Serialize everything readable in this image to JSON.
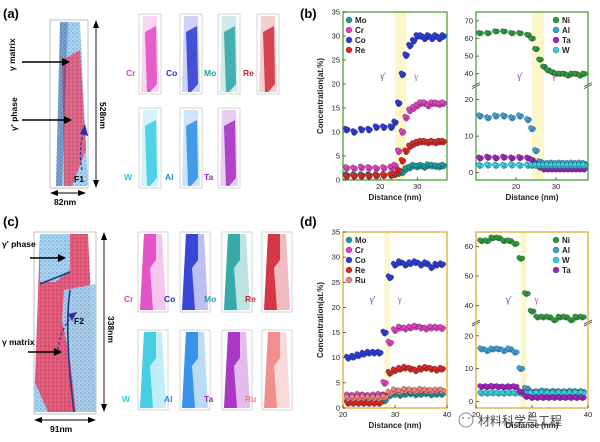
{
  "panels": {
    "a": {
      "label": "(a)",
      "annotations": {
        "gamma_matrix": "γ matrix",
        "gamma_prime_phase": "γ' phase",
        "height": "528nm",
        "width": "82nm",
        "feature": "F1"
      },
      "elements": [
        "Cr",
        "Co",
        "Mo",
        "Re",
        "W",
        "Al",
        "Ta"
      ],
      "element_colors": {
        "Cr": "#e040c0",
        "Co": "#2030d0",
        "Mo": "#20a0a0",
        "Re": "#d02030",
        "W": "#30c8e0",
        "Al": "#1e88e5",
        "Ta": "#a020c0"
      }
    },
    "c": {
      "label": "(c)",
      "annotations": {
        "gamma_matrix": "γ matrix",
        "gamma_prime_phase": "γ' phase",
        "height": "338nm",
        "width": "91nm",
        "feature": "F2"
      },
      "elements": [
        "Cr",
        "Co",
        "Mo",
        "Re",
        "W",
        "Al",
        "Ta",
        "Ru"
      ],
      "element_colors": {
        "Cr": "#e040c0",
        "Co": "#2030d0",
        "Mo": "#20a0a0",
        "Re": "#d02030",
        "W": "#30c8e0",
        "Al": "#1e88e5",
        "Ta": "#a020c0",
        "Ru": "#f08080"
      }
    },
    "b": {
      "label": "(b)"
    },
    "d": {
      "label": "(d)"
    }
  },
  "watermark": "材料科学与工程",
  "chart_data": [
    {
      "id": "b-left",
      "type": "scatter",
      "panel": "b",
      "xlabel": "Distance (nm)",
      "ylabel": "Concentration(at.%)",
      "xlim": [
        10,
        38
      ],
      "ylim": [
        0,
        35
      ],
      "xticks": [
        20,
        30
      ],
      "yticks": [
        0,
        5,
        10,
        15,
        20,
        25,
        30,
        35
      ],
      "phase_labels": [
        "γ'",
        "γ"
      ],
      "interface_x": [
        24,
        27
      ],
      "legend": [
        "Mo",
        "Cr",
        "Co",
        "Re"
      ],
      "series": [
        {
          "name": "Mo",
          "color": "#1a9a9a",
          "x": [
            11,
            13,
            15,
            17,
            19,
            21,
            23,
            24,
            25,
            26,
            27,
            28,
            29,
            30,
            31,
            32,
            33,
            34,
            35,
            36,
            37
          ],
          "y": [
            1.0,
            1.0,
            1.0,
            1.0,
            1.0,
            1.0,
            1.0,
            1.2,
            1.4,
            1.6,
            2.3,
            2.6,
            3.0,
            2.8,
            3.0,
            2.7,
            3.1,
            3.0,
            2.9,
            2.8,
            3.0
          ]
        },
        {
          "name": "Cr",
          "color": "#e040c0",
          "x": [
            11,
            13,
            15,
            17,
            19,
            21,
            23,
            24,
            25,
            26,
            27,
            28,
            29,
            30,
            31,
            32,
            33,
            34,
            35,
            36,
            37
          ],
          "y": [
            2.5,
            2.4,
            2.6,
            2.5,
            2.4,
            2.5,
            2.6,
            3.0,
            6.0,
            10,
            13,
            14.5,
            15,
            15.5,
            16,
            16,
            15.5,
            16,
            16,
            15.8,
            16
          ]
        },
        {
          "name": "Co",
          "color": "#2a3cd8",
          "x": [
            11,
            13,
            15,
            17,
            19,
            21,
            23,
            24,
            25,
            26,
            27,
            28,
            29,
            30,
            31,
            32,
            33,
            34,
            35,
            36,
            37
          ],
          "y": [
            10.5,
            10,
            10.5,
            10.5,
            11,
            11,
            11,
            12,
            16,
            22,
            26,
            28,
            29,
            30,
            30,
            29.5,
            30,
            29.5,
            30,
            29.5,
            30
          ]
        },
        {
          "name": "Re",
          "color": "#d82828",
          "x": [
            11,
            13,
            15,
            17,
            19,
            21,
            23,
            24,
            25,
            26,
            27,
            28,
            29,
            30,
            31,
            32,
            33,
            34,
            35,
            36,
            37
          ],
          "y": [
            0.8,
            0.8,
            0.8,
            0.8,
            0.9,
            1.0,
            1.0,
            1.2,
            2.0,
            4.0,
            6.0,
            7.0,
            7.5,
            7.8,
            8.0,
            8.0,
            7.8,
            8.0,
            7.8,
            8.0,
            8.0
          ]
        }
      ]
    },
    {
      "id": "b-right",
      "type": "scatter",
      "panel": "b",
      "xlabel": "Distance (nm)",
      "ylabel": "",
      "xlim": [
        10,
        38
      ],
      "yticks_top": [
        40,
        50,
        60,
        70
      ],
      "yticks_bottom": [
        0,
        10,
        20
      ],
      "xticks": [
        20,
        30
      ],
      "phase_labels": [
        "γ'",
        "γ"
      ],
      "interface_x": [
        24,
        27
      ],
      "legend": [
        "Ni",
        "Al",
        "Ta",
        "W"
      ],
      "series": [
        {
          "name": "Ni",
          "color": "#2a9a3a",
          "x": [
            11,
            13,
            15,
            17,
            19,
            21,
            23,
            24,
            25,
            26,
            27,
            28,
            29,
            30,
            31,
            32,
            33,
            34,
            35,
            36,
            37
          ],
          "y": [
            63,
            63,
            64,
            64,
            63,
            63,
            62,
            60,
            54,
            48,
            44,
            42,
            41,
            40,
            40,
            40,
            39,
            40,
            40,
            39,
            40
          ]
        },
        {
          "name": "Al",
          "color": "#3aa0d8",
          "x": [
            11,
            13,
            15,
            17,
            19,
            21,
            23,
            24,
            25,
            26,
            27,
            28,
            29,
            30,
            31,
            32,
            33,
            34,
            35,
            36,
            37
          ],
          "y": [
            15.5,
            15,
            15.5,
            15.5,
            15,
            15.5,
            14.5,
            12,
            6,
            3,
            2.5,
            2.5,
            2.6,
            2.5,
            2.6,
            2.5,
            2.5,
            2.6,
            2.5,
            2.6,
            2.5
          ]
        },
        {
          "name": "Ta",
          "color": "#a020c0",
          "x": [
            11,
            13,
            15,
            17,
            19,
            21,
            23,
            24,
            25,
            26,
            27,
            28,
            29,
            30,
            31,
            32,
            33,
            34,
            35,
            36,
            37
          ],
          "y": [
            4.0,
            4.2,
            4.0,
            4.2,
            4.0,
            4.1,
            4.0,
            3.5,
            2.5,
            1.5,
            1.0,
            1.0,
            1.0,
            1.0,
            1.0,
            1.0,
            1.0,
            1.0,
            1.0,
            1.0,
            1.0
          ]
        },
        {
          "name": "W",
          "color": "#30d0e0",
          "x": [
            11,
            13,
            15,
            17,
            19,
            21,
            23,
            24,
            25,
            26,
            27,
            28,
            29,
            30,
            31,
            32,
            33,
            34,
            35,
            36,
            37
          ],
          "y": [
            2.0,
            2.1,
            2.0,
            2.0,
            2.1,
            2.0,
            2.0,
            2.0,
            2.0,
            2.0,
            2.0,
            2.0,
            2.0,
            2.0,
            2.0,
            2.0,
            2.0,
            2.0,
            2.0,
            2.0,
            2.0
          ]
        }
      ]
    },
    {
      "id": "d-left",
      "type": "scatter",
      "panel": "d",
      "xlabel": "Distance (nm)",
      "ylabel": "Concentration(at.%)",
      "xlim": [
        20,
        40
      ],
      "ylim": [
        0,
        35
      ],
      "xticks": [
        20,
        30,
        40
      ],
      "yticks": [
        0,
        5,
        10,
        15,
        20,
        25,
        30,
        35
      ],
      "phase_labels": [
        "γ'",
        "γ"
      ],
      "interface_x": [
        28,
        29
      ],
      "legend": [
        "Mo",
        "Cr",
        "Co",
        "Re",
        "Ru"
      ],
      "series": [
        {
          "name": "Mo",
          "color": "#1a9a9a",
          "x": [
            21,
            22,
            23,
            24,
            25,
            26,
            27,
            28,
            29,
            30,
            31,
            32,
            33,
            34,
            35,
            36,
            37,
            38,
            39
          ],
          "y": [
            1.2,
            1.2,
            1.3,
            1.2,
            1.2,
            1.3,
            1.2,
            1.5,
            2.5,
            2.8,
            2.6,
            2.8,
            2.9,
            2.7,
            2.8,
            2.9,
            2.7,
            2.8,
            2.8
          ]
        },
        {
          "name": "Cr",
          "color": "#e040c0",
          "x": [
            21,
            22,
            23,
            24,
            25,
            26,
            27,
            28,
            29,
            30,
            31,
            32,
            33,
            34,
            35,
            36,
            37,
            38,
            39
          ],
          "y": [
            2.5,
            2.4,
            2.6,
            2.5,
            2.4,
            2.5,
            2.6,
            5.0,
            13,
            15.5,
            16,
            15.8,
            16,
            16.2,
            16,
            15.8,
            16,
            16,
            15.9
          ]
        },
        {
          "name": "Co",
          "color": "#2a3cd8",
          "x": [
            21,
            22,
            23,
            24,
            25,
            26,
            27,
            28,
            29,
            30,
            31,
            32,
            33,
            34,
            35,
            36,
            37,
            38,
            39
          ],
          "y": [
            10,
            10.2,
            10.5,
            10.8,
            11,
            11,
            11,
            15,
            26,
            28.5,
            29,
            28.5,
            28.8,
            29,
            28.5,
            28.8,
            28,
            28.5,
            28.6
          ]
        },
        {
          "name": "Re",
          "color": "#d82828",
          "x": [
            21,
            22,
            23,
            24,
            25,
            26,
            27,
            28,
            29,
            30,
            31,
            32,
            33,
            34,
            35,
            36,
            37,
            38,
            39
          ],
          "y": [
            1.0,
            1.0,
            1.0,
            1.0,
            1.0,
            1.0,
            1.0,
            2.5,
            7.0,
            7.5,
            7.8,
            8.0,
            7.8,
            7.5,
            7.8,
            8.0,
            7.8,
            7.6,
            7.8
          ]
        },
        {
          "name": "Ru",
          "color": "#f08080",
          "x": [
            21,
            22,
            23,
            24,
            25,
            26,
            27,
            28,
            29,
            30,
            31,
            32,
            33,
            34,
            35,
            36,
            37,
            38,
            39
          ],
          "y": [
            2.0,
            2.0,
            2.0,
            2.1,
            2.0,
            2.0,
            2.0,
            2.2,
            3.0,
            3.5,
            3.3,
            3.6,
            3.5,
            3.4,
            3.6,
            3.5,
            3.4,
            3.5,
            3.5
          ]
        }
      ]
    },
    {
      "id": "d-right",
      "type": "scatter",
      "panel": "d",
      "xlabel": "Distance (nm)",
      "ylabel": "",
      "xlim": [
        20,
        40
      ],
      "yticks_top": [
        40,
        50,
        60
      ],
      "yticks_bottom": [
        0,
        10,
        20
      ],
      "xticks": [
        20,
        30,
        40
      ],
      "phase_labels": [
        "γ'",
        "γ"
      ],
      "interface_x": [
        28,
        29
      ],
      "legend": [
        "Ni",
        "Al",
        "W",
        "Ta"
      ],
      "series": [
        {
          "name": "Ni",
          "color": "#2a9a3a",
          "x": [
            21,
            22,
            23,
            24,
            25,
            26,
            27,
            28,
            29,
            30,
            31,
            32,
            33,
            34,
            35,
            36,
            37,
            38,
            39
          ],
          "y": [
            62,
            62,
            63,
            63,
            62,
            62,
            61,
            56,
            44,
            38,
            36,
            36,
            36,
            35,
            36,
            36,
            35,
            36,
            36
          ]
        },
        {
          "name": "Al",
          "color": "#3aa0d8",
          "x": [
            21,
            22,
            23,
            24,
            25,
            26,
            27,
            28,
            29,
            30,
            31,
            32,
            33,
            34,
            35,
            36,
            37,
            38,
            39
          ],
          "y": [
            16,
            15.5,
            16,
            16,
            15.5,
            16,
            15,
            10,
            4,
            3.0,
            3.0,
            3.2,
            3.0,
            3.1,
            3.0,
            3.0,
            3.1,
            3.0,
            3.0
          ]
        },
        {
          "name": "W",
          "color": "#30d0e0",
          "x": [
            21,
            22,
            23,
            24,
            25,
            26,
            27,
            28,
            29,
            30,
            31,
            32,
            33,
            34,
            35,
            36,
            37,
            38,
            39
          ],
          "y": [
            2.5,
            2.5,
            2.6,
            2.5,
            2.5,
            2.6,
            2.5,
            2.5,
            2.6,
            2.5,
            2.5,
            2.6,
            2.5,
            2.5,
            2.6,
            2.5,
            2.5,
            2.6,
            2.5
          ]
        },
        {
          "name": "Ta",
          "color": "#a020c0",
          "x": [
            21,
            22,
            23,
            24,
            25,
            26,
            27,
            28,
            29,
            30,
            31,
            32,
            33,
            34,
            35,
            36,
            37,
            38,
            39
          ],
          "y": [
            4.5,
            4.5,
            4.6,
            4.5,
            4.4,
            4.5,
            4.5,
            3.0,
            1.5,
            1.2,
            1.2,
            1.2,
            1.2,
            1.2,
            1.2,
            1.2,
            1.2,
            1.2,
            1.2
          ]
        }
      ]
    }
  ]
}
